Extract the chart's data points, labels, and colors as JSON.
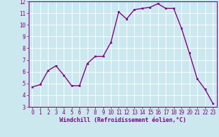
{
  "x": [
    0,
    1,
    2,
    3,
    4,
    5,
    6,
    7,
    8,
    9,
    10,
    11,
    12,
    13,
    14,
    15,
    16,
    17,
    18,
    19,
    20,
    21,
    22,
    23
  ],
  "y": [
    4.7,
    4.9,
    6.1,
    6.5,
    5.7,
    4.8,
    4.8,
    6.7,
    7.3,
    7.3,
    8.5,
    11.1,
    10.5,
    11.3,
    11.4,
    11.5,
    11.8,
    11.4,
    11.4,
    9.7,
    7.6,
    5.4,
    4.5,
    3.3
  ],
  "line_color": "#800080",
  "marker": "s",
  "marker_size": 1.8,
  "bg_color": "#cce8ef",
  "grid_color": "#ffffff",
  "xlabel": "Windchill (Refroidissement éolien,°C)",
  "xlabel_color": "#800080",
  "tick_color": "#800080",
  "ylim": [
    3,
    12
  ],
  "xlim": [
    -0.5,
    23.5
  ],
  "yticks": [
    3,
    4,
    5,
    6,
    7,
    8,
    9,
    10,
    11,
    12
  ],
  "xticks": [
    0,
    1,
    2,
    3,
    4,
    5,
    6,
    7,
    8,
    9,
    10,
    11,
    12,
    13,
    14,
    15,
    16,
    17,
    18,
    19,
    20,
    21,
    22,
    23
  ],
  "spine_color": "#800080",
  "linewidth": 1.0,
  "tick_fontsize": 5.5,
  "xlabel_fontsize": 6.0
}
